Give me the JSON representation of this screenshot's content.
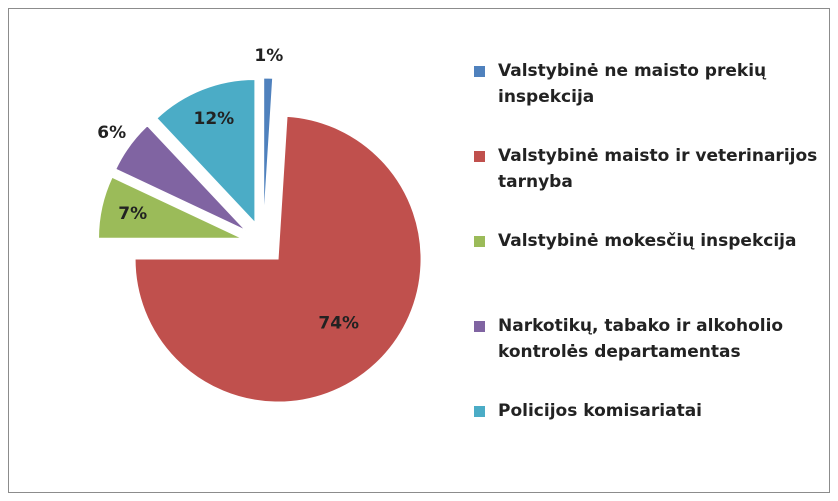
{
  "chart_data": {
    "type": "pie",
    "categories": [
      "Valstybinė ne maisto prekių inspekcija",
      "Valstybinė maisto ir veterinarijos tarnyba",
      "Valstybinė mokesčių inspekcija",
      "Narkotikų, tabako ir alkoholio kontrolės departamentas",
      "Policijos komisariatai"
    ],
    "values": [
      1,
      74,
      7,
      6,
      12
    ],
    "value_labels": [
      "1%",
      "74%",
      "7%",
      "6%",
      "12%"
    ],
    "colors": [
      "#4f81bd",
      "#c0504d",
      "#9bbb59",
      "#8064a2",
      "#4bacc6"
    ],
    "legend": "right"
  }
}
